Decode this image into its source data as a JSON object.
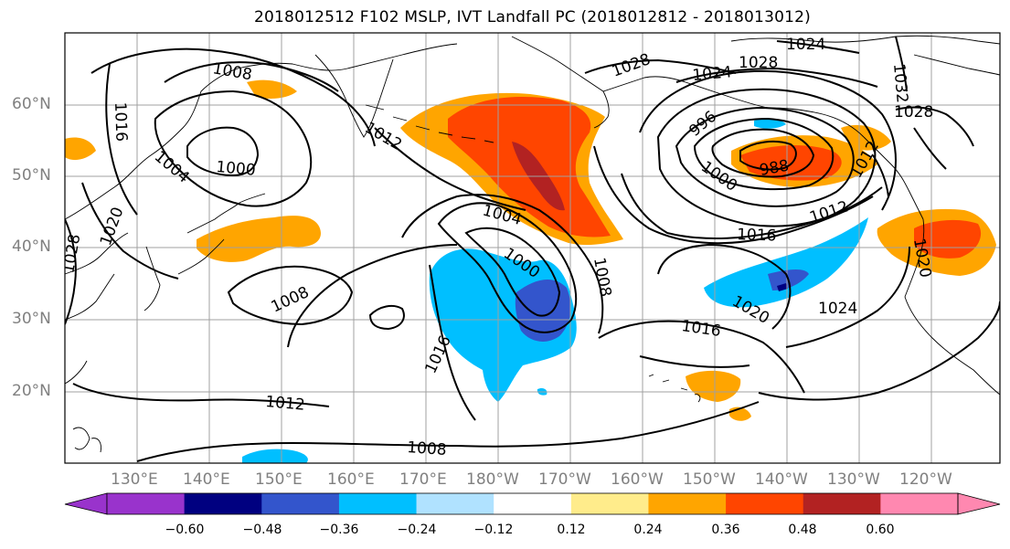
{
  "title": "2018012512 F102 MSLP, IVT Landfall PC (2018012812 - 2018013012)",
  "lat_labels": [
    "60°N",
    "50°N",
    "40°N",
    "30°N",
    "20°N"
  ],
  "lon_labels": [
    "130°E",
    "140°E",
    "150°E",
    "160°E",
    "170°E",
    "180°W",
    "170°W",
    "160°W",
    "150°W",
    "140°W",
    "130°W",
    "120°W"
  ],
  "colorbar": {
    "ticks": [
      "−0.60",
      "−0.48",
      "−0.36",
      "−0.24",
      "−0.12",
      "0.12",
      "0.24",
      "0.36",
      "0.48",
      "0.60"
    ],
    "colors": [
      "#9933cc",
      "#000080",
      "#3355cc",
      "#00bfff",
      "#b0e2ff",
      "#ffffff",
      "#ffec8b",
      "#ffa500",
      "#ff4500",
      "#b22222",
      "#ff88b0"
    ]
  },
  "contour_labels": {
    "l1008_nw": "1008",
    "l1016_w": "1016",
    "l1004_w": "1004",
    "l1000_w": "1000",
    "l1012_nw": "1012",
    "l1028_w": "1028",
    "l1020_w": "1020",
    "l1008_c": "1008",
    "l1004_c": "1004",
    "l1000_c": "1000",
    "l1008_e": "1008",
    "l1016_s": "1016",
    "l1012_s": "1012",
    "l1008_s": "1008",
    "l1028_n": "1028",
    "l1024_n": "1024",
    "l1024_ne": "1024",
    "l1028_ne": "1028",
    "l996": "996",
    "l988": "988",
    "l1000_ak": "1000",
    "l1012_e": "1012",
    "l1016_e": "1016",
    "l1016_se": "1016",
    "l1020_se": "1020",
    "l1024_se": "1024",
    "l1032": "1032",
    "l1028_e2": "1028",
    "l1020_e": "1020",
    "l1012_ak": "1012"
  }
}
